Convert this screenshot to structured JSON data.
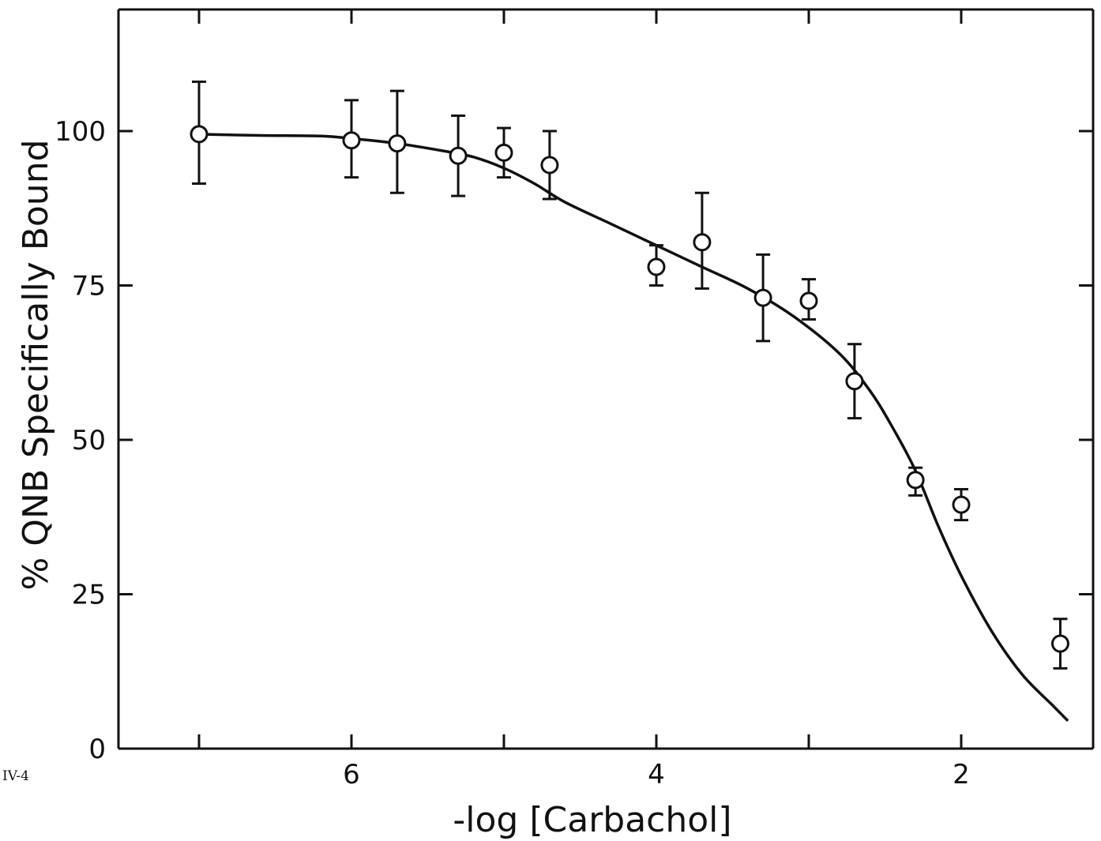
{
  "figure_label": "IV-4",
  "chart_data": {
    "type": "scatter",
    "xlabel": "-log [Carbachol]",
    "ylabel": "% QNB Specifically Bound",
    "x_reversed": true,
    "xlim": [
      7.5,
      1.2
    ],
    "ylim": [
      0,
      120
    ],
    "x_ticks": [
      7,
      6,
      5,
      4,
      3,
      2
    ],
    "x_tick_labels": [
      "",
      "6",
      "",
      "4",
      "",
      "2"
    ],
    "y_ticks": [
      0,
      25,
      50,
      75,
      100
    ],
    "y_tick_labels": [
      "0",
      "25",
      "50",
      "75",
      "100"
    ],
    "grid": false,
    "legend": "none",
    "series": [
      {
        "marker": "open-circle",
        "points": [
          {
            "x": 7.0,
            "y": 99.5,
            "err_low": 91.5,
            "err_high": 108.0
          },
          {
            "x": 6.0,
            "y": 98.5,
            "err_low": 92.5,
            "err_high": 105.0
          },
          {
            "x": 5.7,
            "y": 98.0,
            "err_low": 90.0,
            "err_high": 106.5
          },
          {
            "x": 5.3,
            "y": 96.0,
            "err_low": 89.5,
            "err_high": 102.5
          },
          {
            "x": 5.0,
            "y": 96.5,
            "err_low": 92.5,
            "err_high": 100.5
          },
          {
            "x": 4.7,
            "y": 94.5,
            "err_low": 89.0,
            "err_high": 100.0
          },
          {
            "x": 4.0,
            "y": 78.0,
            "err_low": 75.0,
            "err_high": 81.5
          },
          {
            "x": 3.7,
            "y": 82.0,
            "err_low": 74.5,
            "err_high": 90.0
          },
          {
            "x": 3.3,
            "y": 73.0,
            "err_low": 66.0,
            "err_high": 80.0
          },
          {
            "x": 3.0,
            "y": 72.5,
            "err_low": 69.5,
            "err_high": 76.0
          },
          {
            "x": 2.7,
            "y": 59.5,
            "err_low": 53.5,
            "err_high": 65.5
          },
          {
            "x": 2.3,
            "y": 43.5,
            "err_low": 41.0,
            "err_high": 45.5
          },
          {
            "x": 2.0,
            "y": 39.5,
            "err_low": 37.0,
            "err_high": 42.0
          },
          {
            "x": 1.35,
            "y": 17.0,
            "err_low": 13.0,
            "err_high": 21.0
          }
        ]
      }
    ],
    "fit_curve": {
      "type": "line",
      "points": [
        [
          7.0,
          99.5
        ],
        [
          6.6,
          99.3
        ],
        [
          6.2,
          99.2
        ],
        [
          6.0,
          98.8
        ],
        [
          5.7,
          98.0
        ],
        [
          5.4,
          96.8
        ],
        [
          5.2,
          95.8
        ],
        [
          5.0,
          94.0
        ],
        [
          4.8,
          91.5
        ],
        [
          4.6,
          88.5
        ],
        [
          4.3,
          85.0
        ],
        [
          4.0,
          81.5
        ],
        [
          3.7,
          78.0
        ],
        [
          3.4,
          74.5
        ],
        [
          3.1,
          70.0
        ],
        [
          2.8,
          64.0
        ],
        [
          2.6,
          58.0
        ],
        [
          2.45,
          52.0
        ],
        [
          2.3,
          45.0
        ],
        [
          2.15,
          36.0
        ],
        [
          2.0,
          28.0
        ],
        [
          1.8,
          19.0
        ],
        [
          1.6,
          12.0
        ],
        [
          1.4,
          7.0
        ],
        [
          1.3,
          4.5
        ]
      ]
    }
  }
}
